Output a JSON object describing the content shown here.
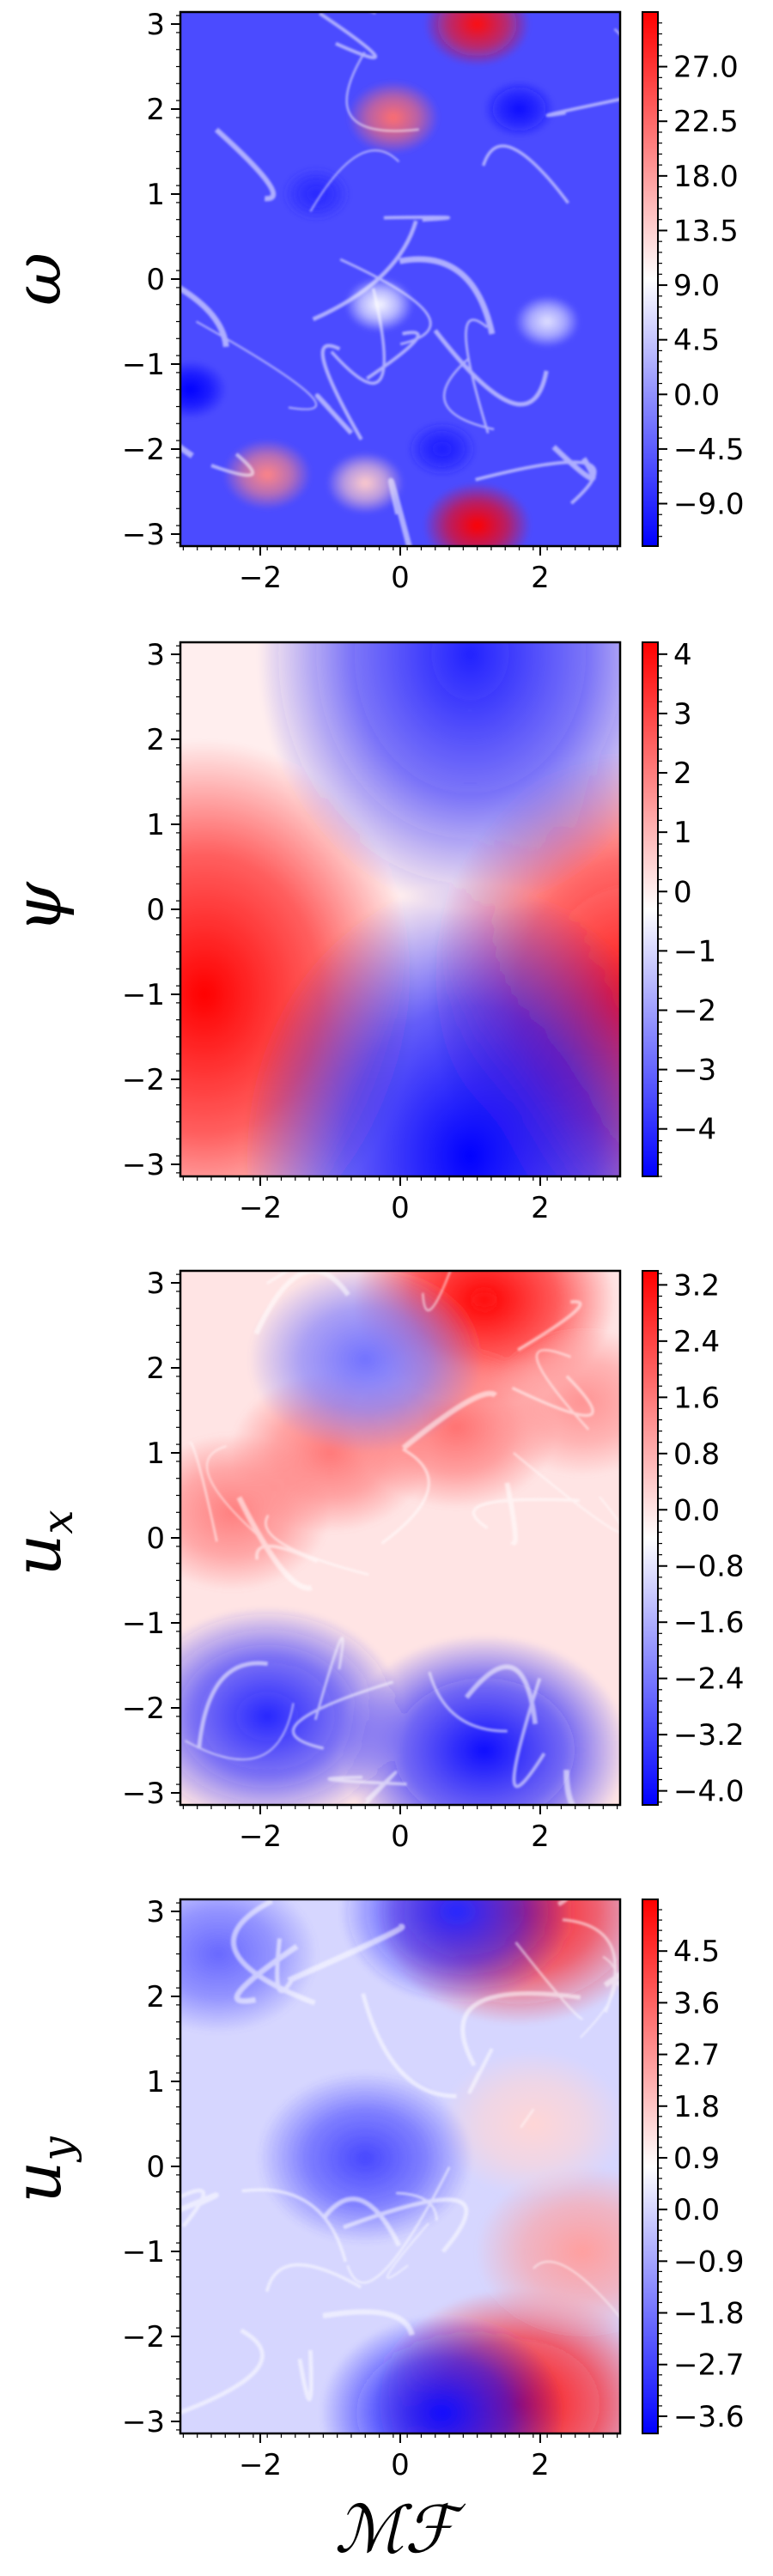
{
  "chart_data": [
    {
      "type": "heatmap",
      "ylabel": "ω",
      "x_ticks": [
        "−2",
        "0",
        "2"
      ],
      "y_ticks": [
        "3",
        "2",
        "1",
        "0",
        "−1",
        "−2",
        "−3"
      ],
      "xlim": [
        -3.14159,
        3.14159
      ],
      "ylim": [
        -3.14159,
        3.14159
      ],
      "colormap": "bwr",
      "colorbar": {
        "min": -12.5,
        "max": 31.5,
        "ticks": [
          27.0,
          22.5,
          18.0,
          13.5,
          9.0,
          4.5,
          0.0,
          -4.5,
          -9.0
        ],
        "labels": [
          "27.0",
          "22.5",
          "18.0",
          "13.5",
          "9.0",
          "4.5",
          "0.0",
          "−4.5",
          "−9.0"
        ]
      },
      "features": [
        {
          "x": 1.1,
          "y": 3.0,
          "value": 30
        },
        {
          "x": -0.1,
          "y": 1.9,
          "value": 22
        },
        {
          "x": -1.9,
          "y": -2.3,
          "value": 20
        },
        {
          "x": 1.1,
          "y": -2.9,
          "value": 31
        },
        {
          "x": -0.5,
          "y": -2.4,
          "value": 14
        },
        {
          "x": -0.3,
          "y": -0.3,
          "value": 9
        },
        {
          "x": 2.1,
          "y": -0.5,
          "value": 7
        },
        {
          "x": -3.0,
          "y": -1.3,
          "value": -12
        },
        {
          "x": 0.6,
          "y": -2.0,
          "value": -10
        },
        {
          "x": 1.7,
          "y": 2.0,
          "value": -11
        },
        {
          "x": -1.2,
          "y": 1.0,
          "value": -9
        }
      ]
    },
    {
      "type": "heatmap",
      "ylabel": "ψ",
      "x_ticks": [
        "−2",
        "0",
        "2"
      ],
      "y_ticks": [
        "3",
        "2",
        "1",
        "0",
        "−1",
        "−2",
        "−3"
      ],
      "xlim": [
        -3.14159,
        3.14159
      ],
      "ylim": [
        -3.14159,
        3.14159
      ],
      "colormap": "bwr",
      "colorbar": {
        "min": -4.8,
        "max": 4.2,
        "ticks": [
          4,
          3,
          2,
          1,
          0,
          -1,
          -2,
          -3,
          -4
        ],
        "labels": [
          "4",
          "3",
          "2",
          "1",
          "0",
          "−1",
          "−2",
          "−3",
          "−4"
        ]
      },
      "features": [
        {
          "x": -2.8,
          "y": -1.0,
          "value": 4.2
        },
        {
          "x": 3.3,
          "y": -1.0,
          "value": 3.8
        },
        {
          "x": 1.0,
          "y": 3.0,
          "value": -4.2
        },
        {
          "x": 1.0,
          "y": -2.9,
          "value": -4.8
        }
      ]
    },
    {
      "type": "heatmap",
      "ylabel": "u_x",
      "x_ticks": [
        "−2",
        "0",
        "2"
      ],
      "y_ticks": [
        "3",
        "2",
        "1",
        "0",
        "−1",
        "−2",
        "−3"
      ],
      "xlim": [
        -3.14159,
        3.14159
      ],
      "ylim": [
        -3.14159,
        3.14159
      ],
      "colormap": "bwr",
      "colorbar": {
        "min": -4.2,
        "max": 3.4,
        "ticks": [
          3.2,
          2.4,
          1.6,
          0.8,
          0.0,
          -0.8,
          -1.6,
          -2.4,
          -3.2,
          -4.0
        ],
        "labels": [
          "3.2",
          "2.4",
          "1.6",
          "0.8",
          "0.0",
          "−0.8",
          "−1.6",
          "−2.4",
          "−3.2",
          "−4.0"
        ]
      },
      "features": [
        {
          "x": 1.2,
          "y": 2.8,
          "value": 3.3
        },
        {
          "x": -1.0,
          "y": 1.0,
          "value": 1.6
        },
        {
          "x": -2.4,
          "y": 0.3,
          "value": 1.5
        },
        {
          "x": 0.8,
          "y": 1.3,
          "value": 1.7
        },
        {
          "x": 2.6,
          "y": 1.6,
          "value": 1.2
        },
        {
          "x": -1.9,
          "y": -2.1,
          "value": -3.6
        },
        {
          "x": 1.2,
          "y": -2.5,
          "value": -4.0
        },
        {
          "x": -0.5,
          "y": 2.1,
          "value": -2.5
        }
      ]
    },
    {
      "type": "heatmap",
      "ylabel": "u_y",
      "xlabel": "ℳℱ",
      "x_ticks": [
        "−2",
        "0",
        "2"
      ],
      "y_ticks": [
        "3",
        "2",
        "1",
        "0",
        "−1",
        "−2",
        "−3"
      ],
      "xlim": [
        -3.14159,
        3.14159
      ],
      "ylim": [
        -3.14159,
        3.14159
      ],
      "colormap": "bwr",
      "colorbar": {
        "min": -3.9,
        "max": 5.4,
        "ticks": [
          4.5,
          3.6,
          2.7,
          1.8,
          0.9,
          0.0,
          -0.9,
          -1.8,
          -2.7,
          -3.6
        ],
        "labels": [
          "4.5",
          "3.6",
          "2.7",
          "1.8",
          "0.9",
          "0.0",
          "−0.9",
          "−1.8",
          "−2.7",
          "−3.6"
        ]
      },
      "features": [
        {
          "x": 1.7,
          "y": 3.0,
          "value": 5.0
        },
        {
          "x": 1.7,
          "y": -2.8,
          "value": 5.2
        },
        {
          "x": 2.6,
          "y": -1.0,
          "value": 2.5
        },
        {
          "x": 1.9,
          "y": 0.5,
          "value": 1.5
        },
        {
          "x": 0.8,
          "y": 3.0,
          "value": -3.2
        },
        {
          "x": 0.6,
          "y": -2.9,
          "value": -3.6
        },
        {
          "x": -0.5,
          "y": 0.1,
          "value": -2.6
        },
        {
          "x": -2.6,
          "y": 2.5,
          "value": -2.0
        }
      ]
    }
  ]
}
